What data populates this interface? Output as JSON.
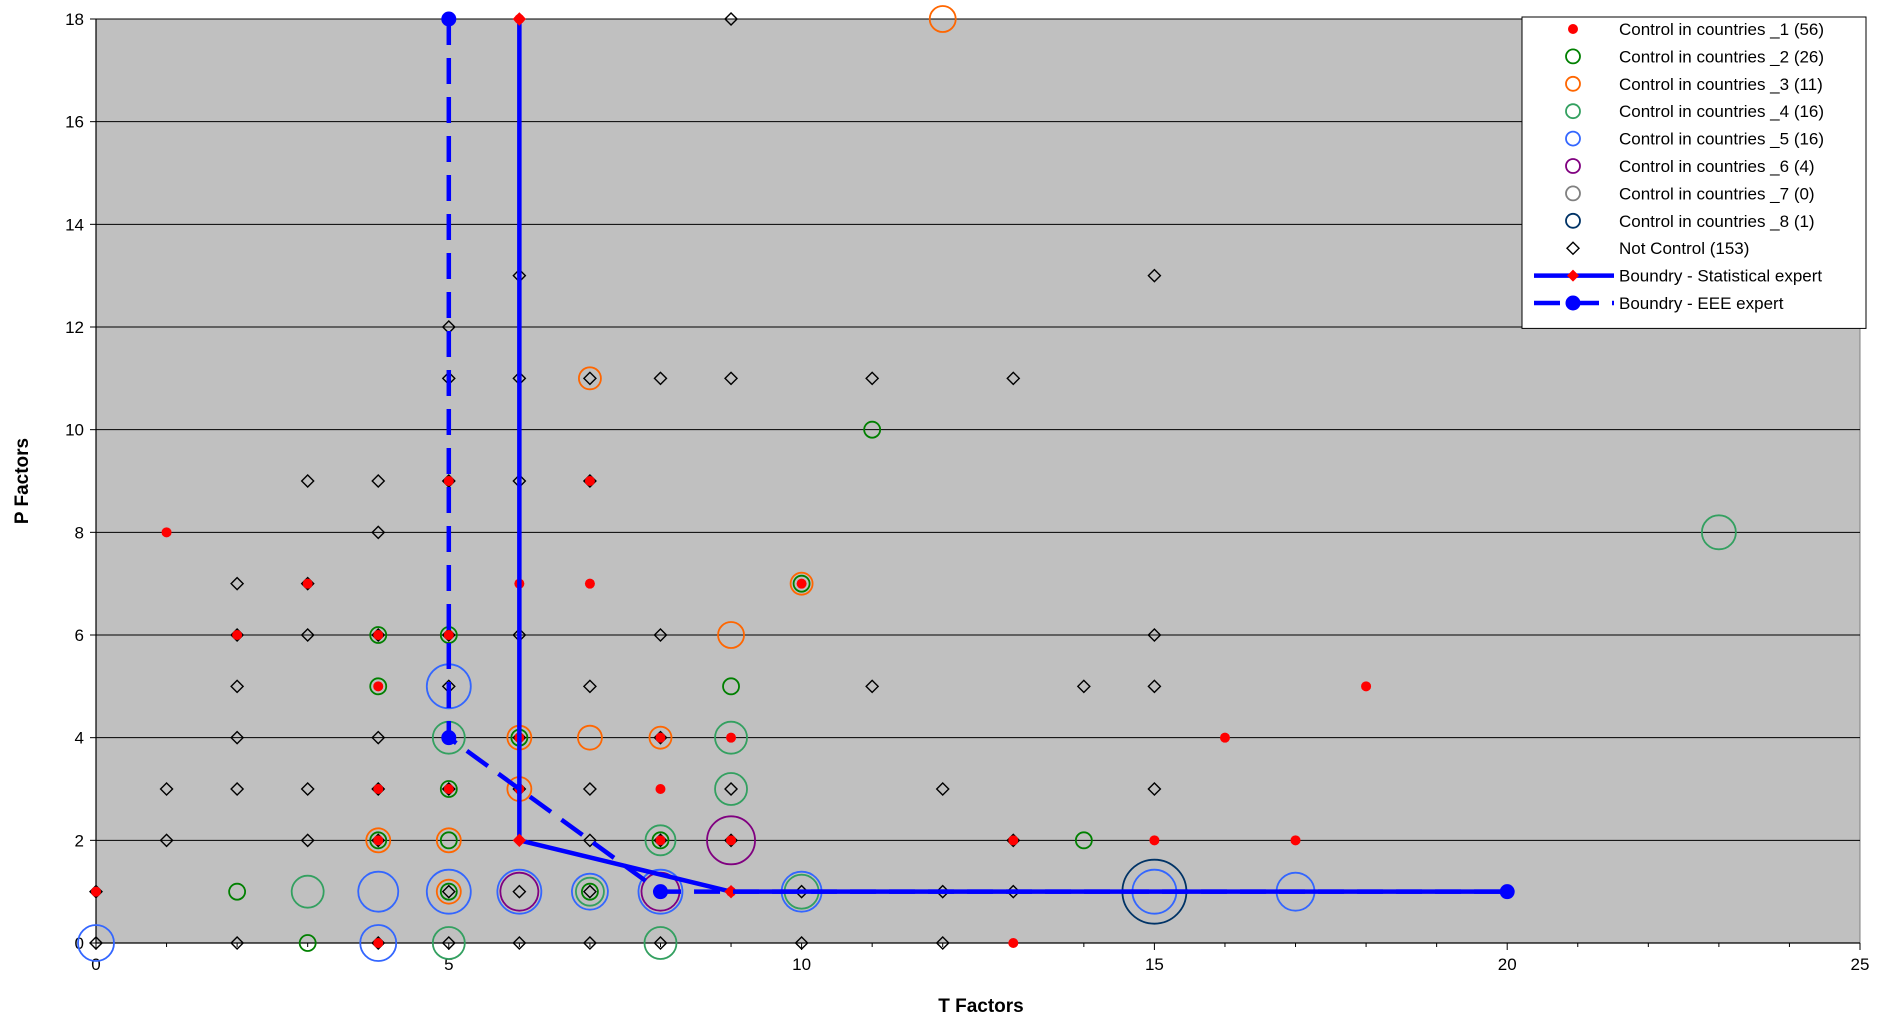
{
  "chart_data": {
    "type": "scatter",
    "title": "",
    "xlabel": "T Factors",
    "ylabel": "P Factors",
    "xlim": [
      0,
      25
    ],
    "ylim": [
      0,
      18
    ],
    "x_ticks": [
      0,
      5,
      10,
      15,
      20,
      25
    ],
    "y_ticks": [
      0,
      2,
      4,
      6,
      8,
      10,
      12,
      14,
      16,
      18
    ],
    "grid": "horizontal",
    "plot_background": "#c0c0c0",
    "legend_position": "top-right",
    "series": [
      {
        "name": "Control in countries _1 (56)",
        "marker": "filled-dot",
        "color": "#ff0000",
        "points": [
          [
            0,
            1
          ],
          [
            1,
            8
          ],
          [
            2,
            6
          ],
          [
            3,
            7
          ],
          [
            4,
            6
          ],
          [
            4,
            5
          ],
          [
            4,
            3
          ],
          [
            4,
            2
          ],
          [
            4,
            0
          ],
          [
            5,
            9
          ],
          [
            5,
            6
          ],
          [
            5,
            3
          ],
          [
            6,
            18
          ],
          [
            6,
            7
          ],
          [
            6,
            4
          ],
          [
            6,
            3
          ],
          [
            7,
            9
          ],
          [
            7,
            7
          ],
          [
            8,
            4
          ],
          [
            8,
            3
          ],
          [
            8,
            2
          ],
          [
            9,
            4
          ],
          [
            9,
            2
          ],
          [
            9,
            1
          ],
          [
            10,
            7
          ],
          [
            13,
            2
          ],
          [
            13,
            0
          ],
          [
            15,
            2
          ],
          [
            16,
            4
          ],
          [
            17,
            2
          ],
          [
            18,
            5
          ]
        ]
      },
      {
        "name": "Control in countries _2 (26)",
        "marker": "open-circle",
        "color": "#008000",
        "points": [
          [
            2,
            1
          ],
          [
            3,
            0
          ],
          [
            4,
            6
          ],
          [
            4,
            5
          ],
          [
            4,
            2
          ],
          [
            5,
            6
          ],
          [
            5,
            3
          ],
          [
            5,
            2
          ],
          [
            5,
            1
          ],
          [
            6,
            4
          ],
          [
            7,
            1
          ],
          [
            8,
            2
          ],
          [
            9,
            5
          ],
          [
            10,
            7
          ],
          [
            11,
            10
          ],
          [
            14,
            2
          ]
        ]
      },
      {
        "name": "Control in countries _3 (11)",
        "marker": "open-circle",
        "color": "#ff6600",
        "points": [
          [
            4,
            2
          ],
          [
            5,
            2
          ],
          [
            5,
            1
          ],
          [
            6,
            4
          ],
          [
            6,
            3
          ],
          [
            7,
            11
          ],
          [
            7,
            4
          ],
          [
            8,
            4
          ],
          [
            9,
            6
          ],
          [
            10,
            7
          ],
          [
            12,
            18
          ]
        ]
      },
      {
        "name": "Control in countries _4 (16)",
        "marker": "open-circle",
        "color": "#33a060",
        "points": [
          [
            3,
            1
          ],
          [
            5,
            4
          ],
          [
            5,
            0
          ],
          [
            7,
            1
          ],
          [
            8,
            2
          ],
          [
            8,
            0
          ],
          [
            9,
            4
          ],
          [
            9,
            3
          ],
          [
            10,
            1
          ],
          [
            23,
            8
          ]
        ]
      },
      {
        "name": "Control in countries _5 (16)",
        "marker": "open-circle",
        "color": "#3366ff",
        "points": [
          [
            0,
            0
          ],
          [
            4,
            1
          ],
          [
            4,
            0
          ],
          [
            5,
            5
          ],
          [
            5,
            1
          ],
          [
            6,
            1
          ],
          [
            7,
            1
          ],
          [
            8,
            1
          ],
          [
            10,
            1
          ],
          [
            15,
            1
          ],
          [
            17,
            1
          ]
        ]
      },
      {
        "name": "Control in countries _6 (4)",
        "marker": "open-circle",
        "color": "#800080",
        "points": [
          [
            6,
            1
          ],
          [
            8,
            1
          ],
          [
            9,
            2
          ]
        ]
      },
      {
        "name": "Control in countries _7 (0)",
        "marker": "open-circle",
        "color": "#808080",
        "points": []
      },
      {
        "name": "Control in countries _8 (1)",
        "marker": "open-circle",
        "color": "#003366",
        "points": [
          [
            15,
            1
          ]
        ]
      },
      {
        "name": "Not Control (153)",
        "marker": "open-diamond",
        "color": "#000000",
        "points": [
          [
            0,
            1
          ],
          [
            0,
            0
          ],
          [
            1,
            3
          ],
          [
            1,
            2
          ],
          [
            2,
            7
          ],
          [
            2,
            6
          ],
          [
            2,
            5
          ],
          [
            2,
            4
          ],
          [
            2,
            3
          ],
          [
            2,
            0
          ],
          [
            3,
            9
          ],
          [
            3,
            7
          ],
          [
            3,
            6
          ],
          [
            3,
            3
          ],
          [
            3,
            2
          ],
          [
            4,
            9
          ],
          [
            4,
            8
          ],
          [
            4,
            6
          ],
          [
            4,
            4
          ],
          [
            4,
            3
          ],
          [
            4,
            2
          ],
          [
            4,
            0
          ],
          [
            5,
            12
          ],
          [
            5,
            11
          ],
          [
            5,
            9
          ],
          [
            5,
            6
          ],
          [
            5,
            5
          ],
          [
            5,
            3
          ],
          [
            5,
            1
          ],
          [
            5,
            0
          ],
          [
            6,
            13
          ],
          [
            6,
            11
          ],
          [
            6,
            9
          ],
          [
            6,
            6
          ],
          [
            6,
            4
          ],
          [
            6,
            3
          ],
          [
            6,
            1
          ],
          [
            6,
            0
          ],
          [
            7,
            11
          ],
          [
            7,
            9
          ],
          [
            7,
            5
          ],
          [
            7,
            3
          ],
          [
            7,
            2
          ],
          [
            7,
            1
          ],
          [
            7,
            0
          ],
          [
            8,
            11
          ],
          [
            8,
            6
          ],
          [
            8,
            4
          ],
          [
            8,
            2
          ],
          [
            8,
            1
          ],
          [
            8,
            0
          ],
          [
            9,
            18
          ],
          [
            9,
            11
          ],
          [
            9,
            3
          ],
          [
            9,
            2
          ],
          [
            10,
            1
          ],
          [
            10,
            0
          ],
          [
            11,
            11
          ],
          [
            11,
            5
          ],
          [
            12,
            3
          ],
          [
            12,
            1
          ],
          [
            12,
            0
          ],
          [
            13,
            11
          ],
          [
            13,
            2
          ],
          [
            13,
            1
          ],
          [
            14,
            5
          ],
          [
            15,
            13
          ],
          [
            15,
            6
          ],
          [
            15,
            5
          ],
          [
            15,
            3
          ]
        ]
      },
      {
        "name": "Boundry - Statistical expert",
        "marker": "line-solid-diamond",
        "color": "#0000ff",
        "points": [
          [
            6,
            18
          ],
          [
            6,
            2
          ],
          [
            9,
            1
          ],
          [
            20,
            1
          ]
        ]
      },
      {
        "name": "Boundry - EEE expert",
        "marker": "line-dashed-dot",
        "color": "#0000ff",
        "points": [
          [
            5,
            18
          ],
          [
            5,
            4
          ],
          [
            8,
            1
          ],
          [
            20,
            1
          ]
        ]
      }
    ],
    "circle_sizes": [
      {
        "x": 0,
        "y": 0,
        "series": 4,
        "r": 18
      },
      {
        "x": 3,
        "y": 1,
        "series": 3,
        "r": 16
      },
      {
        "x": 4,
        "y": 1,
        "series": 4,
        "r": 20
      },
      {
        "x": 4,
        "y": 0,
        "series": 4,
        "r": 18
      },
      {
        "x": 5,
        "y": 5,
        "series": 4,
        "r": 22
      },
      {
        "x": 5,
        "y": 4,
        "series": 3,
        "r": 16
      },
      {
        "x": 5,
        "y": 1,
        "series": 4,
        "r": 22
      },
      {
        "x": 5,
        "y": 0,
        "series": 3,
        "r": 16
      },
      {
        "x": 6,
        "y": 1,
        "series": 4,
        "r": 22
      },
      {
        "x": 6,
        "y": 1,
        "series": 5,
        "r": 19
      },
      {
        "x": 7,
        "y": 1,
        "series": 4,
        "r": 18
      },
      {
        "x": 7,
        "y": 1,
        "series": 3,
        "r": 14
      },
      {
        "x": 8,
        "y": 1,
        "series": 4,
        "r": 22
      },
      {
        "x": 8,
        "y": 1,
        "series": 5,
        "r": 19
      },
      {
        "x": 8,
        "y": 2,
        "series": 3,
        "r": 15
      },
      {
        "x": 8,
        "y": 0,
        "series": 3,
        "r": 16
      },
      {
        "x": 9,
        "y": 4,
        "series": 3,
        "r": 16
      },
      {
        "x": 9,
        "y": 3,
        "series": 3,
        "r": 16
      },
      {
        "x": 9,
        "y": 2,
        "series": 5,
        "r": 24
      },
      {
        "x": 10,
        "y": 1,
        "series": 4,
        "r": 20
      },
      {
        "x": 10,
        "y": 1,
        "series": 3,
        "r": 17
      },
      {
        "x": 15,
        "y": 1,
        "series": 4,
        "r": 22
      },
      {
        "x": 15,
        "y": 1,
        "series": 7,
        "r": 32
      },
      {
        "x": 17,
        "y": 1,
        "series": 4,
        "r": 19
      },
      {
        "x": 23,
        "y": 8,
        "series": 3,
        "r": 17
      },
      {
        "x": 12,
        "y": 18,
        "series": 2,
        "r": 13
      },
      {
        "x": 9,
        "y": 6,
        "series": 2,
        "r": 13
      },
      {
        "x": 7,
        "y": 4,
        "series": 2,
        "r": 12
      },
      {
        "x": 10,
        "y": 7,
        "series": 2,
        "r": 11
      },
      {
        "x": 7,
        "y": 11,
        "series": 2,
        "r": 11
      },
      {
        "x": 6,
        "y": 3,
        "series": 2,
        "r": 12
      },
      {
        "x": 6,
        "y": 4,
        "series": 2,
        "r": 12
      },
      {
        "x": 8,
        "y": 4,
        "series": 2,
        "r": 11
      },
      {
        "x": 4,
        "y": 2,
        "series": 2,
        "r": 12
      },
      {
        "x": 5,
        "y": 2,
        "series": 2,
        "r": 12
      },
      {
        "x": 5,
        "y": 1,
        "series": 2,
        "r": 12
      }
    ]
  }
}
